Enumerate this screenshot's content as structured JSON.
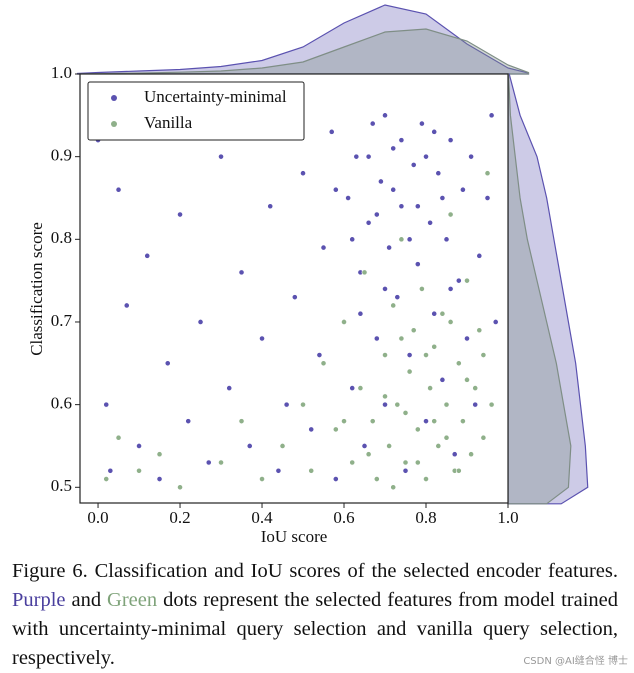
{
  "chart_data": {
    "type": "scatter",
    "xlabel": "IoU score",
    "ylabel": "Classification score",
    "xlim": [
      -0.044,
      1.0
    ],
    "ylim": [
      0.481,
      1.0
    ],
    "xticks": [
      {
        "value": 0,
        "label": "0.0"
      },
      0.2,
      0.4,
      0.6,
      0.8,
      {
        "value": 1,
        "label": "1.0"
      }
    ],
    "yticks": [
      0.5,
      0.6,
      0.7,
      0.8,
      0.9,
      {
        "value": 1,
        "label": "1.0"
      }
    ],
    "legend": "upper left",
    "series": [
      {
        "name": "Uncertainty-minimal",
        "color": "#5b52b0",
        "x": [
          0.0,
          0.02,
          0.03,
          0.05,
          0.07,
          0.1,
          0.12,
          0.15,
          0.17,
          0.2,
          0.22,
          0.25,
          0.27,
          0.3,
          0.32,
          0.35,
          0.37,
          0.4,
          0.42,
          0.44,
          0.46,
          0.48,
          0.5,
          0.52,
          0.54,
          0.55,
          0.57,
          0.58,
          0.6,
          0.61,
          0.62,
          0.63,
          0.64,
          0.65,
          0.66,
          0.67,
          0.68,
          0.69,
          0.7,
          0.71,
          0.72,
          0.73,
          0.74,
          0.75,
          0.76,
          0.77,
          0.78,
          0.79,
          0.8,
          0.81,
          0.82,
          0.83,
          0.84,
          0.85,
          0.86,
          0.87,
          0.88,
          0.89,
          0.9,
          0.91,
          0.92,
          0.93,
          0.95,
          0.96,
          0.97,
          0.68,
          0.72,
          0.76,
          0.8,
          0.7,
          0.62,
          0.74,
          0.84,
          0.58,
          0.66,
          0.78,
          0.82,
          0.64,
          0.86,
          0.7
        ],
        "values": [
          0.92,
          0.6,
          0.52,
          0.86,
          0.72,
          0.55,
          0.78,
          0.51,
          0.65,
          0.83,
          0.58,
          0.7,
          0.53,
          0.9,
          0.62,
          0.76,
          0.55,
          0.68,
          0.84,
          0.52,
          0.6,
          0.73,
          0.88,
          0.57,
          0.66,
          0.79,
          0.93,
          0.51,
          0.7,
          0.85,
          0.62,
          0.9,
          0.76,
          0.55,
          0.82,
          0.94,
          0.68,
          0.87,
          0.6,
          0.79,
          0.91,
          0.73,
          0.84,
          0.52,
          0.66,
          0.89,
          0.77,
          0.94,
          0.58,
          0.82,
          0.71,
          0.88,
          0.63,
          0.8,
          0.92,
          0.54,
          0.75,
          0.86,
          0.68,
          0.9,
          0.6,
          0.78,
          0.85,
          0.95,
          0.7,
          0.83,
          0.86,
          0.8,
          0.9,
          0.74,
          0.8,
          0.92,
          0.85,
          0.86,
          0.9,
          0.84,
          0.93,
          0.71,
          0.74,
          0.95
        ]
      },
      {
        "name": "Vanilla",
        "color": "#8fb08a",
        "x": [
          0.02,
          0.05,
          0.1,
          0.15,
          0.2,
          0.3,
          0.35,
          0.4,
          0.45,
          0.5,
          0.52,
          0.55,
          0.58,
          0.6,
          0.62,
          0.64,
          0.65,
          0.67,
          0.68,
          0.7,
          0.71,
          0.72,
          0.73,
          0.74,
          0.75,
          0.76,
          0.77,
          0.78,
          0.79,
          0.8,
          0.81,
          0.82,
          0.83,
          0.84,
          0.85,
          0.86,
          0.87,
          0.88,
          0.89,
          0.9,
          0.91,
          0.92,
          0.93,
          0.94,
          0.95,
          0.96,
          0.7,
          0.75,
          0.8,
          0.85,
          0.78,
          0.82,
          0.9,
          0.66,
          0.74,
          0.88,
          0.6,
          0.72,
          0.94,
          0.86
        ],
        "values": [
          0.51,
          0.56,
          0.52,
          0.54,
          0.5,
          0.53,
          0.58,
          0.51,
          0.55,
          0.6,
          0.52,
          0.65,
          0.57,
          0.7,
          0.53,
          0.62,
          0.76,
          0.58,
          0.51,
          0.66,
          0.55,
          0.72,
          0.6,
          0.8,
          0.53,
          0.64,
          0.69,
          0.57,
          0.74,
          0.51,
          0.62,
          0.67,
          0.55,
          0.71,
          0.6,
          0.83,
          0.52,
          0.65,
          0.58,
          0.75,
          0.54,
          0.62,
          0.69,
          0.56,
          0.88,
          0.6,
          0.61,
          0.59,
          0.66,
          0.56,
          0.53,
          0.58,
          0.63,
          0.54,
          0.68,
          0.52,
          0.58,
          0.5,
          0.66,
          0.7
        ]
      }
    ],
    "x_density": {
      "lim": 2.4,
      "x": [
        -0.05,
        0,
        0.1,
        0.2,
        0.3,
        0.4,
        0.5,
        0.6,
        0.7,
        0.8,
        0.9,
        1.0,
        1.05
      ],
      "series": [
        {
          "color": "#5b52b0",
          "values": [
            0.02,
            0.05,
            0.1,
            0.15,
            0.25,
            0.45,
            0.9,
            1.7,
            2.3,
            2.0,
            1.0,
            0.2,
            0.03
          ]
        },
        {
          "color": "#7f8e86",
          "values": [
            0,
            0.01,
            0.03,
            0.06,
            0.1,
            0.2,
            0.4,
            0.9,
            1.4,
            1.5,
            1.1,
            0.3,
            0.05
          ]
        }
      ]
    },
    "y_density": {
      "lim": 3.6,
      "y": [
        0.48,
        0.5,
        0.55,
        0.6,
        0.65,
        0.7,
        0.75,
        0.8,
        0.85,
        0.9,
        0.95,
        1.0
      ],
      "series": [
        {
          "color": "#5b52b0",
          "values": [
            2.2,
            3.3,
            3.2,
            3.0,
            2.8,
            2.5,
            2.2,
            1.9,
            1.6,
            1.2,
            0.5,
            0.05
          ]
        },
        {
          "color": "#7f8e86",
          "values": [
            1.6,
            2.5,
            2.6,
            2.3,
            2.0,
            1.6,
            1.2,
            0.8,
            0.5,
            0.3,
            0.1,
            0.02
          ]
        }
      ]
    }
  },
  "caption": {
    "parts": [
      {
        "text": "Figure 6.  Classification and IoU scores of the selected encoder features. "
      },
      {
        "text": "Purple",
        "color": "#4a3f9e"
      },
      {
        "text": " and "
      },
      {
        "text": "Green",
        "color": "#7fa37a"
      },
      {
        "text": " dots represent the selected features from model trained with uncertainty-minimal query selection and vanilla query selection, respectively."
      }
    ]
  },
  "watermark": "CSDN @AI缝合怪 博士"
}
